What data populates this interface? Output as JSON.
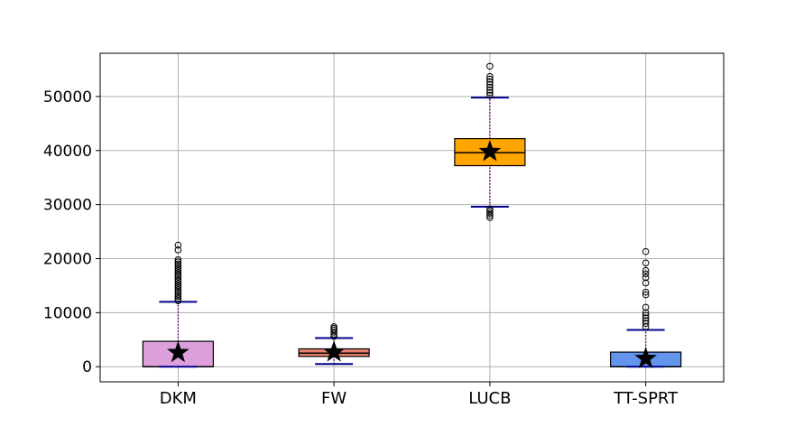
{
  "chart_data": {
    "type": "box",
    "title": "",
    "xlabel": "",
    "ylabel": "",
    "ylim": [
      -2800,
      58000
    ],
    "yticks": [
      0,
      10000,
      20000,
      30000,
      40000,
      50000
    ],
    "ytick_labels": [
      "0",
      "10000",
      "20000",
      "30000",
      "40000",
      "50000"
    ],
    "grid": true,
    "categories": [
      "DKM",
      "FW",
      "LUCB",
      "TT-SPRT"
    ],
    "boxes": [
      {
        "category": "DKM",
        "color": "#dda0dd",
        "whisker_low": 0,
        "q1": 0,
        "median": 0,
        "q3": 4700,
        "whisker_high": 12000,
        "mean": 2600,
        "outliers": [
          12200,
          12600,
          13000,
          13400,
          13800,
          14200,
          14600,
          15000,
          15400,
          15800,
          16200,
          16600,
          17000,
          17400,
          17800,
          18200,
          18600,
          19000,
          19400,
          19800,
          21600,
          22500
        ]
      },
      {
        "category": "FW",
        "color": "#e9806e",
        "whisker_low": 500,
        "q1": 1900,
        "median": 2500,
        "q3": 3300,
        "whisker_high": 5300,
        "mean": 2700,
        "outliers": [
          5600,
          6000,
          6400,
          6800,
          7100,
          7400
        ]
      },
      {
        "category": "LUCB",
        "color": "#ffa500",
        "whisker_low": 29600,
        "q1": 37200,
        "median": 39600,
        "q3": 42200,
        "whisker_high": 49800,
        "mean": 39800,
        "outliers": [
          27600,
          28000,
          28400,
          28800,
          29200,
          50200,
          50700,
          51200,
          51700,
          52200,
          52700,
          53200,
          53700,
          55600
        ]
      },
      {
        "category": "TT-SPRT",
        "color": "#6495ed",
        "whisker_low": 0,
        "q1": 0,
        "median": 0,
        "q3": 2700,
        "whisker_high": 6800,
        "mean": 1500,
        "outliers": [
          7400,
          8000,
          8500,
          9000,
          9500,
          10000,
          11000,
          13300,
          13800,
          15500,
          16500,
          17200,
          17800,
          19200,
          21300
        ]
      }
    ]
  }
}
